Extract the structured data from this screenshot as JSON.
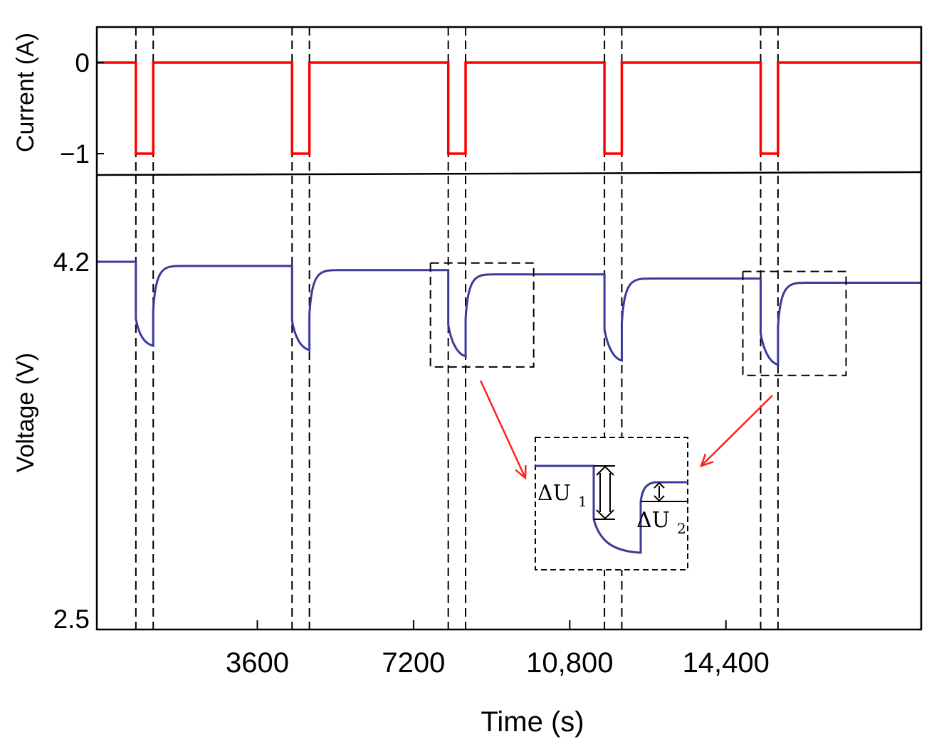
{
  "chart_data": {
    "type": "line",
    "colors": {
      "current": "#ff0000",
      "voltage": "#3a3a9c",
      "arrow": "#ff2020",
      "guide": "#000000"
    },
    "top_panel": {
      "ylabel": "Current (A)",
      "y_ticks": [
        "0",
        "−1"
      ],
      "y_values": [
        0,
        -1
      ],
      "baseline": 0,
      "pulse_level": -1
    },
    "bottom_panel": {
      "ylabel": "Voltage (V)",
      "y_ticks": [
        "4.2",
        "2.5"
      ],
      "ylim": [
        2.5,
        4.2
      ]
    },
    "xlabel": "Time (s)",
    "x_ticks": [
      "3600",
      "7200",
      "10,800",
      "14,400"
    ],
    "x_tick_values": [
      3600,
      7200,
      10800,
      14400
    ],
    "xlim": [
      -100,
      18900
    ],
    "pulses": [
      {
        "start": 800,
        "end": 1200,
        "v_before": 4.2,
        "v_ohmic": 3.93,
        "v_end": 3.8,
        "v_recover": 3.97,
        "v_rest": 4.18
      },
      {
        "start": 4400,
        "end": 4800,
        "v_before": 4.18,
        "v_ohmic": 3.92,
        "v_end": 3.78,
        "v_recover": 3.95,
        "v_rest": 4.16
      },
      {
        "start": 8000,
        "end": 8400,
        "v_before": 4.16,
        "v_ohmic": 3.9,
        "v_end": 3.75,
        "v_recover": 3.93,
        "v_rest": 4.14
      },
      {
        "start": 11600,
        "end": 12000,
        "v_before": 4.14,
        "v_ohmic": 3.88,
        "v_end": 3.73,
        "v_recover": 3.91,
        "v_rest": 4.12
      },
      {
        "start": 15200,
        "end": 15600,
        "v_before": 4.12,
        "v_ohmic": 3.86,
        "v_end": 3.71,
        "v_recover": 3.89,
        "v_rest": 4.1
      }
    ],
    "inset": {
      "label_1": "ΔU",
      "sub_1": "1",
      "label_2": "ΔU",
      "sub_2": "2"
    }
  }
}
